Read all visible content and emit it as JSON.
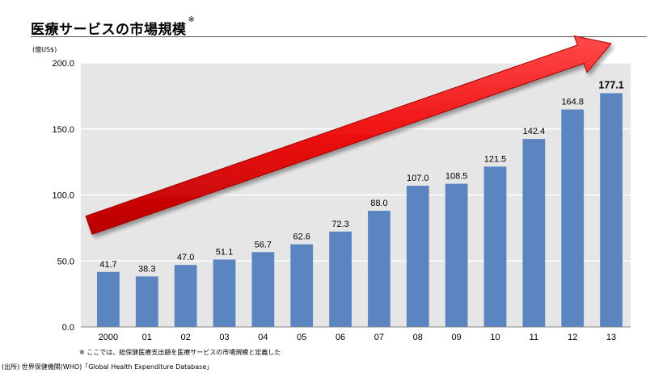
{
  "title": "医療サービスの市場規模",
  "title_mark": "※",
  "unit_label": "(億US$)",
  "note": "※ ここでは、総保健医療支出額を医療サービスの市場規模と定義した",
  "source": "(出所) 世界保健機関(WHO)「Global Health Expenditure Database」",
  "colors": {
    "bar": "#5b85c1",
    "plot_bg": "#e6e6e6",
    "arrow": "#ee1111",
    "grid": "#ffffff"
  },
  "chart_data": {
    "type": "bar",
    "categories": [
      "2000",
      "01",
      "02",
      "03",
      "04",
      "05",
      "06",
      "07",
      "08",
      "09",
      "10",
      "11",
      "12",
      "13"
    ],
    "values": [
      41.7,
      38.3,
      47.0,
      51.1,
      56.7,
      62.6,
      72.3,
      88.0,
      107.0,
      108.5,
      121.5,
      142.4,
      164.8,
      177.1
    ],
    "value_labels": [
      "41.7",
      "38.3",
      "47.0",
      "51.1",
      "56.7",
      "62.6",
      "72.3",
      "88.0",
      "107.0",
      "108.5",
      "121.5",
      "142.4",
      "164.8",
      "177.1"
    ],
    "y_ticks": [
      0,
      50,
      100,
      150,
      200
    ],
    "y_tick_labels": [
      "0.0",
      "50.0",
      "100.0",
      "150.0",
      "200.0"
    ],
    "ylim": [
      0,
      200
    ],
    "grid": true,
    "annotation": "upward-trend-arrow",
    "highlight_last_label": true
  }
}
